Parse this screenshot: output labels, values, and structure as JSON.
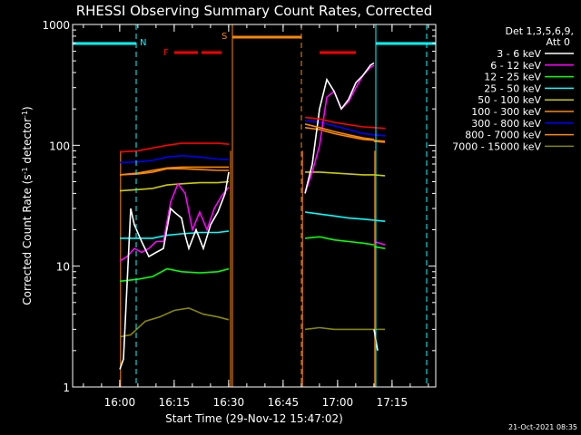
{
  "chart_data": {
    "type": "line",
    "title": "RHESSI Observing Summary Count Rates, Corrected",
    "xlabel": "Start Time (29-Nov-12 15:47:02)",
    "ylabel_main": "Corrected Count Rate (s",
    "ylabel_sup1": "-1",
    "ylabel_mid": " detector",
    "ylabel_sup2": "-1",
    "ylabel_end": ")",
    "x_unit": "minutes since 15:47:02",
    "xlim": [
      0,
      100
    ],
    "ylim": [
      1,
      1000
    ],
    "yscale": "log",
    "xticks": [
      {
        "t": 12.97,
        "label": "16:00"
      },
      {
        "t": 27.97,
        "label": "16:15"
      },
      {
        "t": 42.97,
        "label": "16:30"
      },
      {
        "t": 57.97,
        "label": "16:45"
      },
      {
        "t": 72.97,
        "label": "17:00"
      },
      {
        "t": 87.97,
        "label": "17:15"
      }
    ],
    "yticks": [
      {
        "v": 1,
        "label": "1"
      },
      {
        "v": 10,
        "label": "10"
      },
      {
        "v": 100,
        "label": "100"
      },
      {
        "v": 1000,
        "label": "1000"
      }
    ],
    "legend": {
      "header1": "Det 1,3,5,6,9,",
      "header2": "Att 0",
      "position": "right"
    },
    "series": [
      {
        "name": "3 - 6 keV",
        "color": "#ffffff",
        "segments": [
          [
            [
              13,
              1.4
            ],
            [
              14,
              1.7
            ],
            [
              16,
              30
            ],
            [
              17,
              22
            ],
            [
              19,
              16
            ],
            [
              21,
              12
            ],
            [
              23,
              13
            ],
            [
              25,
              14
            ],
            [
              27,
              30
            ],
            [
              28,
              28
            ],
            [
              30,
              25
            ],
            [
              31,
              18
            ],
            [
              32,
              14
            ],
            [
              34,
              20
            ],
            [
              36,
              14
            ],
            [
              38,
              22
            ],
            [
              40,
              28
            ],
            [
              42,
              40
            ],
            [
              43,
              60
            ]
          ],
          [
            [
              64,
              40
            ],
            [
              66,
              70
            ],
            [
              68,
              200
            ],
            [
              70,
              350
            ],
            [
              72,
              280
            ],
            [
              74,
              200
            ],
            [
              76,
              240
            ],
            [
              78,
              330
            ],
            [
              80,
              380
            ],
            [
              82,
              460
            ],
            [
              83,
              480
            ]
          ],
          [
            [
              83,
              3
            ],
            [
              84,
              2
            ]
          ]
        ]
      },
      {
        "name": "6 - 12 keV",
        "color": "#ff00ff",
        "segments": [
          [
            [
              13,
              11
            ],
            [
              15,
              12
            ],
            [
              17,
              14
            ],
            [
              19,
              13
            ],
            [
              21,
              14
            ],
            [
              23,
              16
            ],
            [
              25,
              16
            ],
            [
              27,
              34
            ],
            [
              29,
              48
            ],
            [
              31,
              40
            ],
            [
              33,
              20
            ],
            [
              35,
              28
            ],
            [
              37,
              20
            ],
            [
              39,
              30
            ],
            [
              41,
              38
            ],
            [
              43,
              45
            ]
          ],
          [
            [
              64,
              40
            ],
            [
              66,
              60
            ],
            [
              68,
              100
            ],
            [
              70,
              250
            ],
            [
              72,
              280
            ],
            [
              74,
              200
            ],
            [
              76,
              230
            ],
            [
              78,
              300
            ],
            [
              80,
              380
            ],
            [
              82,
              440
            ],
            [
              83,
              460
            ]
          ],
          [
            [
              83,
              16
            ],
            [
              86,
              15
            ]
          ]
        ]
      },
      {
        "name": "12 - 25 keV",
        "color": "#00ff00",
        "segments": [
          [
            [
              13,
              7.5
            ],
            [
              18,
              7.8
            ],
            [
              22,
              8.2
            ],
            [
              26,
              9.5
            ],
            [
              30,
              9
            ],
            [
              35,
              8.8
            ],
            [
              40,
              9
            ],
            [
              43,
              9.5
            ]
          ],
          [
            [
              64,
              17
            ],
            [
              68,
              17.5
            ],
            [
              72,
              16.5
            ],
            [
              76,
              16
            ],
            [
              80,
              15.5
            ],
            [
              83,
              15
            ]
          ],
          [
            [
              83,
              14.5
            ],
            [
              86,
              14
            ]
          ]
        ]
      },
      {
        "name": "25 - 50 keV",
        "color": "#00ffff",
        "segments": [
          [
            [
              13,
              17
            ],
            [
              18,
              17
            ],
            [
              22,
              17
            ],
            [
              26,
              18
            ],
            [
              30,
              18.5
            ],
            [
              35,
              19
            ],
            [
              40,
              19
            ],
            [
              43,
              19.5
            ]
          ],
          [
            [
              64,
              28
            ],
            [
              68,
              27
            ],
            [
              72,
              26
            ],
            [
              76,
              25
            ],
            [
              80,
              24.5
            ],
            [
              83,
              24
            ]
          ],
          [
            [
              83,
              24
            ],
            [
              86,
              23.5
            ]
          ]
        ]
      },
      {
        "name": "50 - 100 keV",
        "color": "#cccc00",
        "segments": [
          [
            [
              13,
              42
            ],
            [
              18,
              43
            ],
            [
              22,
              44
            ],
            [
              26,
              47
            ],
            [
              30,
              48
            ],
            [
              35,
              49
            ],
            [
              40,
              49
            ],
            [
              43,
              50
            ]
          ],
          [
            [
              64,
              60
            ],
            [
              68,
              60
            ],
            [
              72,
              59
            ],
            [
              76,
              58
            ],
            [
              80,
              57
            ],
            [
              83,
              57
            ]
          ],
          [
            [
              83,
              57
            ],
            [
              86,
              56
            ]
          ]
        ]
      },
      {
        "name": "100 - 300 keV",
        "color": "#ff8800",
        "segments": [
          [
            [
              13,
              57
            ],
            [
              18,
              59
            ],
            [
              22,
              62
            ],
            [
              26,
              65
            ],
            [
              30,
              66
            ],
            [
              35,
              66
            ],
            [
              40,
              66
            ],
            [
              43,
              66
            ]
          ],
          [
            [
              64,
              150
            ],
            [
              68,
              140
            ],
            [
              72,
              130
            ],
            [
              76,
              122
            ],
            [
              80,
              115
            ],
            [
              83,
              112
            ]
          ],
          [
            [
              83,
              110
            ],
            [
              86,
              108
            ]
          ]
        ]
      },
      {
        "name": "300 - 800 keV",
        "color": "#0000ff",
        "segments": [
          [
            [
              13,
              72
            ],
            [
              18,
              73
            ],
            [
              22,
              75
            ],
            [
              26,
              80
            ],
            [
              30,
              82
            ],
            [
              35,
              80
            ],
            [
              40,
              77
            ],
            [
              43,
              76
            ]
          ],
          [
            [
              64,
              160
            ],
            [
              68,
              155
            ],
            [
              72,
              145
            ],
            [
              76,
              135
            ],
            [
              80,
              125
            ],
            [
              83,
              122
            ]
          ],
          [
            [
              83,
              122
            ],
            [
              86,
              120
            ]
          ]
        ]
      },
      {
        "name": "800 - 7000 keV",
        "color": "#ff8800",
        "segments": [
          [
            [
              13,
              57
            ],
            [
              18,
              58
            ],
            [
              22,
              60
            ],
            [
              26,
              64
            ],
            [
              30,
              64
            ],
            [
              35,
              63
            ],
            [
              40,
              62
            ],
            [
              43,
              62
            ]
          ],
          [
            [
              64,
              140
            ],
            [
              68,
              135
            ],
            [
              72,
              125
            ],
            [
              76,
              118
            ],
            [
              80,
              112
            ],
            [
              83,
              110
            ]
          ],
          [
            [
              83,
              108
            ],
            [
              86,
              106
            ]
          ]
        ]
      },
      {
        "name": "7000 - 15000 keV",
        "color": "#888800",
        "segments": [
          [
            [
              13,
              2.6
            ],
            [
              16,
              2.7
            ],
            [
              20,
              3.5
            ],
            [
              24,
              3.8
            ],
            [
              28,
              4.3
            ],
            [
              32,
              4.5
            ],
            [
              36,
              4.0
            ],
            [
              40,
              3.8
            ],
            [
              43,
              3.6
            ]
          ],
          [
            [
              64,
              3.0
            ],
            [
              68,
              3.1
            ],
            [
              72,
              3.0
            ],
            [
              76,
              3.0
            ],
            [
              80,
              3.0
            ],
            [
              83,
              3.0
            ]
          ],
          [
            [
              83,
              3.0
            ],
            [
              86,
              3.0
            ]
          ]
        ]
      }
    ],
    "red_top": {
      "color": "#ff0000",
      "segments": [
        [
          [
            13,
            88
          ],
          [
            18,
            90
          ],
          [
            22,
            95
          ],
          [
            26,
            100
          ],
          [
            30,
            104
          ],
          [
            35,
            104
          ],
          [
            40,
            104
          ],
          [
            43,
            102
          ]
        ],
        [
          [
            64,
            170
          ],
          [
            68,
            165
          ],
          [
            72,
            155
          ],
          [
            76,
            148
          ],
          [
            80,
            142
          ],
          [
            83,
            140
          ]
        ],
        [
          [
            83,
            140
          ],
          [
            86,
            138
          ]
        ]
      ]
    },
    "drop_lines": [
      {
        "t": 13.2,
        "color": "#ff8800"
      },
      {
        "t": 43.5,
        "color": "#ff8800"
      },
      {
        "t": 63.3,
        "color": "#ff8800"
      },
      {
        "t": 83.2,
        "color": "#ff8800"
      }
    ],
    "markers": {
      "night_label": "N",
      "saa_label": "S",
      "flare_label": "F",
      "night_color": "#00ffff",
      "saa_color": "#ff8800",
      "flare_color": "#ff0000",
      "night_bars": [
        [
          0,
          17.5
        ],
        [
          83.5,
          100
        ]
      ],
      "night_lines": [
        17.5,
        83.5,
        97.5
      ],
      "saa_bar": [
        44,
        63
      ],
      "saa_lines": [
        44
      ],
      "saa_dashed": [
        63
      ],
      "flare_bars": [
        [
          28,
          34.5
        ],
        [
          35.5,
          41
        ],
        [
          68,
          78
        ]
      ]
    },
    "timestamp": "21-Oct-2021 08:35"
  }
}
